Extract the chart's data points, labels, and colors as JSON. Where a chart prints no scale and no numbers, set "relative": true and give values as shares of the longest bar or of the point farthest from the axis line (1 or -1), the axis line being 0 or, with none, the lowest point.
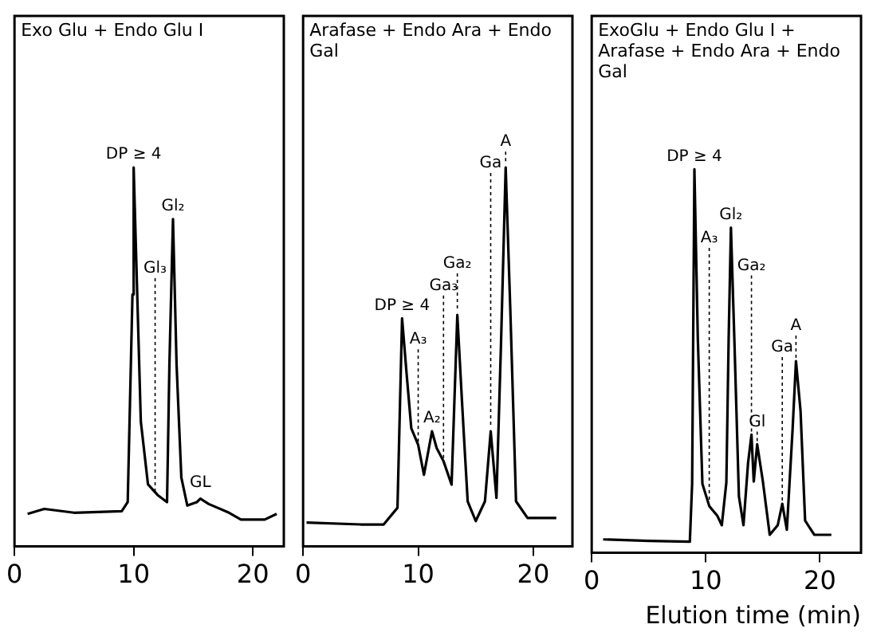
{
  "chart_data": [
    {
      "type": "line",
      "title": "Exo Glu + Endo Glu I",
      "relative": true,
      "xlim": [
        0,
        22.6
      ],
      "xticks": [
        0,
        10,
        20
      ],
      "grid": false,
      "legend": false,
      "marker": "none",
      "line_style": "solid",
      "series": [
        {
          "color": "#000000",
          "x": [
            1.1,
            2.5,
            5,
            9,
            9.5,
            9.9,
            10.0,
            10.3,
            10.6,
            11.2,
            12,
            12.8,
            13.0,
            13.3,
            13.6,
            14.0,
            14.5,
            15.3,
            15.6,
            16.3,
            18,
            19,
            21,
            22
          ],
          "values": [
            0.086,
            0.099,
            0.089,
            0.093,
            0.117,
            0.665,
            1.0,
            0.665,
            0.33,
            0.164,
            0.136,
            0.117,
            0.48,
            0.864,
            0.48,
            0.182,
            0.108,
            0.117,
            0.126,
            0.112,
            0.089,
            0.071,
            0.071,
            0.086
          ]
        }
      ],
      "annotations": [
        {
          "text": "DP ≥ 4",
          "x": 10.0,
          "y": 1.0
        },
        {
          "text": "Gl₂",
          "x": 13.3,
          "y": 0.864
        },
        {
          "text": "Gl₃",
          "x": 11.8,
          "y": 0.136
        },
        {
          "text": "GL",
          "x": 15.6,
          "y": 0.126
        }
      ]
    },
    {
      "type": "line",
      "title": "Arafase + Endo Ara + Endo Gal",
      "relative": true,
      "xlim": [
        0,
        23.4
      ],
      "xticks": [
        0,
        10,
        20
      ],
      "grid": false,
      "legend": false,
      "marker": "none",
      "line_style": "solid",
      "series": [
        {
          "color": "#000000",
          "x": [
            0.3,
            5,
            7,
            8.2,
            8.6,
            9.0,
            9.4,
            10.0,
            10.5,
            11.2,
            11.6,
            12.2,
            12.9,
            13.4,
            13.8,
            14.0,
            14.3,
            15,
            15.8,
            16.3,
            16.8,
            17.2,
            17.6,
            18.0,
            18.5,
            19.5,
            22
          ],
          "values": [
            0.063,
            0.058,
            0.058,
            0.102,
            0.602,
            0.453,
            0.312,
            0.268,
            0.189,
            0.304,
            0.26,
            0.225,
            0.163,
            0.611,
            0.386,
            0.277,
            0.119,
            0.067,
            0.119,
            0.304,
            0.128,
            0.54,
            1.0,
            0.628,
            0.119,
            0.075,
            0.075
          ]
        }
      ],
      "annotations": [
        {
          "text": "DP ≥ 4",
          "x": 8.6,
          "y": 0.602
        },
        {
          "text": "A₃",
          "x": 10.0,
          "y": 0.268
        },
        {
          "text": "A₂",
          "x": 11.2,
          "y": 0.304
        },
        {
          "text": "Ga₃",
          "x": 12.2,
          "y": 0.225
        },
        {
          "text": "Ga₂",
          "x": 13.4,
          "y": 0.611
        },
        {
          "text": "Ga",
          "x": 16.3,
          "y": 0.304
        },
        {
          "text": "A",
          "x": 17.6,
          "y": 1.0
        }
      ]
    },
    {
      "type": "line",
      "title": "ExoGlu + Endo Glu I + Arafase + Endo Ara + Endo Gal",
      "xlabel": "Elution time (min)",
      "relative": true,
      "xlim": [
        0,
        23.6
      ],
      "xticks": [
        0,
        10,
        20
      ],
      "grid": false,
      "legend": false,
      "marker": "none",
      "line_style": "solid",
      "series": [
        {
          "color": "#000000",
          "x": [
            1,
            5,
            8.6,
            8.8,
            9.0,
            9.3,
            9.7,
            10.3,
            11.0,
            11.4,
            11.8,
            12.0,
            12.2,
            12.5,
            12.9,
            13.3,
            13.7,
            14.0,
            14.2,
            14.5,
            15,
            15.6,
            16.3,
            16.7,
            17.1,
            17.6,
            17.9,
            18.3,
            18.7,
            19.5,
            21
          ],
          "values": [
            0.035,
            0.031,
            0.029,
            0.18,
            1.0,
            0.557,
            0.18,
            0.122,
            0.097,
            0.072,
            0.184,
            0.557,
            0.848,
            0.557,
            0.147,
            0.072,
            0.234,
            0.308,
            0.186,
            0.283,
            0.186,
            0.047,
            0.072,
            0.128,
            0.06,
            0.32,
            0.5,
            0.37,
            0.084,
            0.047,
            0.047
          ]
        }
      ],
      "annotations": [
        {
          "text": "DP ≥ 4",
          "x": 9.0,
          "y": 1.0
        },
        {
          "text": "A₃",
          "x": 10.3,
          "y": 0.122
        },
        {
          "text": "Gl₂",
          "x": 12.2,
          "y": 0.848
        },
        {
          "text": "Ga₂",
          "x": 14.0,
          "y": 0.308
        },
        {
          "text": "Gl",
          "x": 14.5,
          "y": 0.283
        },
        {
          "text": "Ga",
          "x": 16.7,
          "y": 0.128
        },
        {
          "text": "A",
          "x": 17.9,
          "y": 0.5
        }
      ]
    }
  ]
}
